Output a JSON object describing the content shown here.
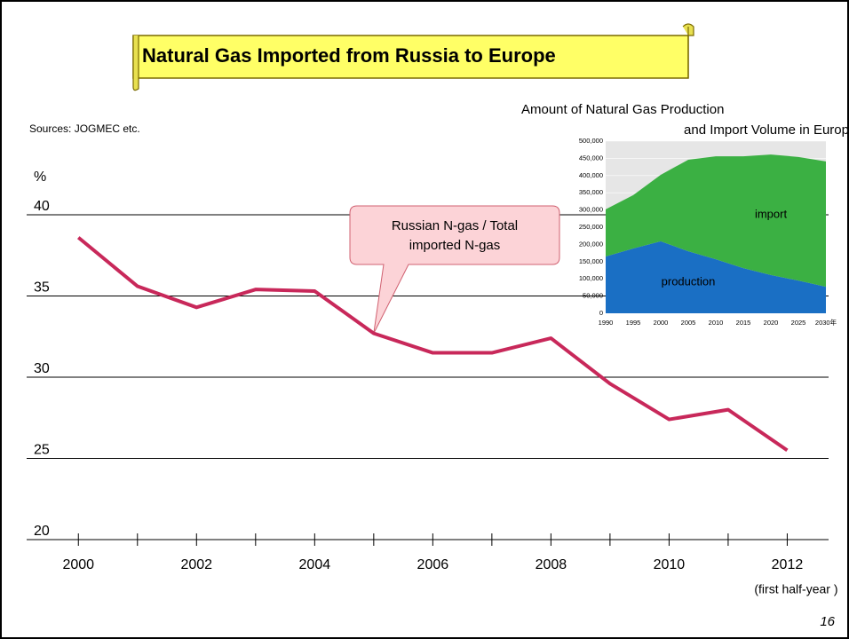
{
  "title": "Natural Gas Imported from Russia to Europe",
  "source": "Sources: JOGMEC etc.",
  "page_number": "16",
  "chart_data": [
    {
      "type": "line",
      "y_label": "%",
      "annotation": [
        "Russian N-gas / Total",
        "imported N-gas"
      ],
      "x_note": "(first half-year )",
      "color": "#c8285a",
      "x": [
        2000,
        2001,
        2002,
        2003,
        2004,
        2005,
        2006,
        2007,
        2008,
        2009,
        2010,
        2011,
        2012
      ],
      "values": [
        38.6,
        35.6,
        34.3,
        35.4,
        35.3,
        32.7,
        31.5,
        31.5,
        32.4,
        29.6,
        27.4,
        28.0,
        25.5
      ],
      "xlim": [
        1999.5,
        2012.7
      ],
      "xticks": [
        2000,
        2002,
        2004,
        2006,
        2008,
        2010,
        2012
      ],
      "minor_xticks": [
        2001,
        2003,
        2005,
        2007,
        2009,
        2011
      ],
      "ylim": [
        20,
        40
      ],
      "yticks": [
        20,
        25,
        30,
        35,
        40
      ],
      "grid": true
    },
    {
      "type": "area",
      "stacked": true,
      "title": [
        "Amount of Natural Gas Production",
        "and  Import  Volume in Europ"
      ],
      "x": [
        1990,
        1995,
        2000,
        2005,
        2010,
        2015,
        2020,
        2025,
        2030
      ],
      "series": [
        {
          "name": "production",
          "color": "#1a6fc4",
          "values": [
            165000,
            188000,
            209000,
            180000,
            157000,
            131000,
            111000,
            95000,
            77000
          ]
        },
        {
          "name": "import",
          "color": "#3bb043",
          "values": [
            137000,
            155000,
            193000,
            266000,
            299000,
            325000,
            350000,
            359000,
            364000
          ]
        }
      ],
      "xlim": [
        1990,
        2030
      ],
      "xticks": [
        1990,
        1995,
        2000,
        2005,
        2010,
        2015,
        2020,
        2025,
        {
          "value": 2030,
          "label": "2030年"
        }
      ],
      "ylim": [
        0,
        500000
      ],
      "yticks": [
        0,
        {
          "value": 50000,
          "label": "50,000"
        },
        {
          "value": 100000,
          "label": "100,000"
        },
        {
          "value": 150000,
          "label": "150,000"
        },
        {
          "value": 200000,
          "label": "200,000"
        },
        {
          "value": 250000,
          "label": "250,000"
        },
        {
          "value": 300000,
          "label": "300,000"
        },
        {
          "value": 350000,
          "label": "350,000"
        },
        {
          "value": 400000,
          "label": "400,000"
        },
        {
          "value": 450000,
          "label": "450,000"
        },
        {
          "value": 500000,
          "label": "500,000"
        }
      ]
    }
  ]
}
